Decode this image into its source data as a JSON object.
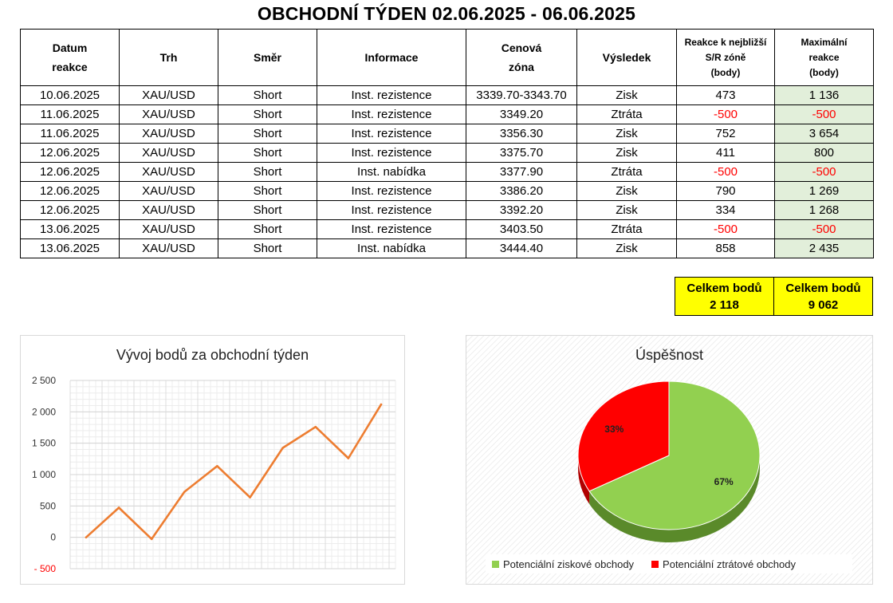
{
  "title": "OBCHODNÍ TÝDEN 02.06.2025 - 06.06.2025",
  "table": {
    "headers": {
      "date": [
        "Datum",
        "reakce"
      ],
      "market": "Trh",
      "direction": "Směr",
      "info": "Informace",
      "zone": [
        "Cenová",
        "zóna"
      ],
      "result": "Výsledek",
      "reaction": [
        "Reakce k nejbližší",
        "S/R zóně",
        "(body)"
      ],
      "max": [
        "Maximální",
        "reakce",
        "(body)"
      ]
    },
    "rows": [
      {
        "date": "10.06.2025",
        "market": "XAU/USD",
        "direction": "Short",
        "info": "Inst. rezistence",
        "zone": "3339.70-3343.70",
        "result": "Zisk",
        "reaction": "473",
        "max": "1 136",
        "neg": false
      },
      {
        "date": "11.06.2025",
        "market": "XAU/USD",
        "direction": "Short",
        "info": "Inst. rezistence",
        "zone": "3349.20",
        "result": "Ztráta",
        "reaction": "-500",
        "max": "-500",
        "neg": true
      },
      {
        "date": "11.06.2025",
        "market": "XAU/USD",
        "direction": "Short",
        "info": "Inst. rezistence",
        "zone": "3356.30",
        "result": "Zisk",
        "reaction": "752",
        "max": "3 654",
        "neg": false
      },
      {
        "date": "12.06.2025",
        "market": "XAU/USD",
        "direction": "Short",
        "info": "Inst. rezistence",
        "zone": "3375.70",
        "result": "Zisk",
        "reaction": "411",
        "max": "800",
        "neg": false
      },
      {
        "date": "12.06.2025",
        "market": "XAU/USD",
        "direction": "Short",
        "info": "Inst. nabídka",
        "zone": "3377.90",
        "result": "Ztráta",
        "reaction": "-500",
        "max": "-500",
        "neg": true
      },
      {
        "date": "12.06.2025",
        "market": "XAU/USD",
        "direction": "Short",
        "info": "Inst. rezistence",
        "zone": "3386.20",
        "result": "Zisk",
        "reaction": "790",
        "max": "1 269",
        "neg": false
      },
      {
        "date": "12.06.2025",
        "market": "XAU/USD",
        "direction": "Short",
        "info": "Inst. rezistence",
        "zone": "3392.20",
        "result": "Zisk",
        "reaction": "334",
        "max": "1 268",
        "neg": false
      },
      {
        "date": "13.06.2025",
        "market": "XAU/USD",
        "direction": "Short",
        "info": "Inst. rezistence",
        "zone": "3403.50",
        "result": "Ztráta",
        "reaction": "-500",
        "max": "-500",
        "neg": true
      },
      {
        "date": "13.06.2025",
        "market": "XAU/USD",
        "direction": "Short",
        "info": "Inst. nabídka",
        "zone": "3444.40",
        "result": "Zisk",
        "reaction": "858",
        "max": "2 435",
        "neg": false
      }
    ]
  },
  "totals": {
    "label": "Celkem bodů",
    "reaction_total": "2 118",
    "max_total": "9 062"
  },
  "colors": {
    "line": "#ed7d31",
    "negative": "#ff0000",
    "pie_win": "#92d050",
    "pie_loss": "#ff0000",
    "total_bg": "#ffff00",
    "max_col_bg": "#e2efda"
  },
  "chart_data": [
    {
      "type": "line",
      "title": "Vývoj bodů za obchodní týden",
      "x": [
        0,
        1,
        2,
        3,
        4,
        5,
        6,
        7,
        8,
        9
      ],
      "values": [
        0,
        473,
        -27,
        725,
        1136,
        636,
        1426,
        1760,
        1260,
        2118
      ],
      "ylim": [
        -500,
        2500
      ],
      "yticks": [
        -500,
        0,
        500,
        1000,
        1500,
        2000,
        2500
      ],
      "ytick_labels": [
        "- 500",
        "0",
        "500",
        "1 000",
        "1 500",
        "2 000",
        "2 500"
      ],
      "grid": true,
      "color": "#ed7d31"
    },
    {
      "type": "pie",
      "title": "Úspěšnost",
      "slices": [
        {
          "name": "Potenciální ziskové obchody",
          "value": 67,
          "label": "67%",
          "color": "#92d050"
        },
        {
          "name": "Potenciální ztrátové obchody",
          "value": 33,
          "label": "33%",
          "color": "#ff0000"
        }
      ],
      "legend": "bottom"
    }
  ]
}
